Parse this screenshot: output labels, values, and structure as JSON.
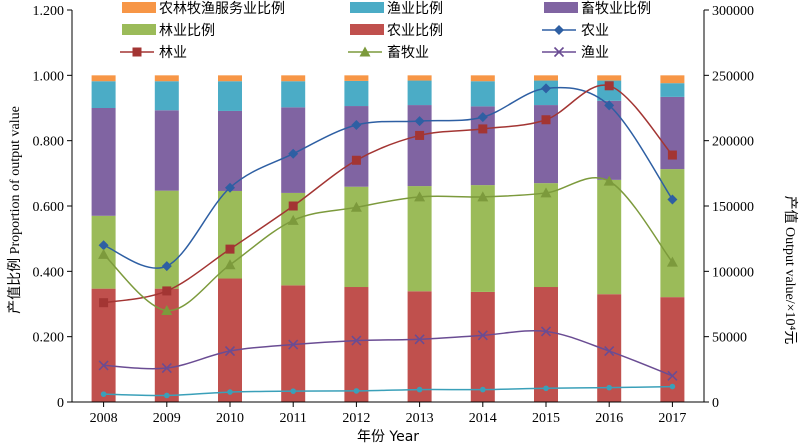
{
  "chart_data": {
    "type": "bar",
    "categories": [
      "2008",
      "2009",
      "2010",
      "2011",
      "2012",
      "2013",
      "2014",
      "2015",
      "2016",
      "2017"
    ],
    "xlabel": "年份 Year",
    "ylabel_left": "产值比例 Proportion of output value",
    "ylabel_right": "产值 Output value/×10⁴元",
    "ylim_left": [
      0,
      1.2
    ],
    "yticks_left": [
      "0",
      "0.200",
      "0.400",
      "0.600",
      "0.800",
      "1.000",
      "1.200"
    ],
    "ylim_right": [
      0,
      300000
    ],
    "yticks_right": [
      "0",
      "50000",
      "100000",
      "150000",
      "200000",
      "250000",
      "300000"
    ],
    "stacked_bars": [
      {
        "name": "农业比例",
        "color": "#c0504d",
        "values": [
          0.347,
          0.347,
          0.378,
          0.357,
          0.352,
          0.339,
          0.337,
          0.352,
          0.33,
          0.321
        ]
      },
      {
        "name": "林业比例",
        "color": "#9bbb59",
        "values": [
          0.223,
          0.3,
          0.268,
          0.283,
          0.307,
          0.322,
          0.327,
          0.318,
          0.35,
          0.392
        ]
      },
      {
        "name": "畜牧业比例",
        "color": "#8064a2",
        "values": [
          0.33,
          0.246,
          0.245,
          0.262,
          0.247,
          0.248,
          0.241,
          0.239,
          0.242,
          0.221
        ]
      },
      {
        "name": "渔业比例",
        "color": "#4bacc6",
        "values": [
          0.082,
          0.089,
          0.091,
          0.08,
          0.077,
          0.075,
          0.077,
          0.075,
          0.062,
          0.042
        ]
      },
      {
        "name": "农林牧渔服务业比例",
        "color": "#f79646",
        "values": [
          0.018,
          0.018,
          0.018,
          0.018,
          0.017,
          0.016,
          0.018,
          0.016,
          0.016,
          0.024
        ]
      }
    ],
    "line_series": [
      {
        "name": "农业",
        "color": "#2e5fa3",
        "marker": "diamond",
        "values": [
          120000,
          104000,
          164000,
          190000,
          212000,
          215000,
          218000,
          240000,
          227000,
          155000
        ]
      },
      {
        "name": "林业",
        "color": "#a33533",
        "marker": "square",
        "values": [
          76000,
          85000,
          117000,
          150000,
          185000,
          204000,
          209000,
          216000,
          242000,
          189000
        ]
      },
      {
        "name": "畜牧业",
        "color": "#7c9a3c",
        "marker": "triangle",
        "values": [
          113000,
          70000,
          105000,
          139000,
          149000,
          157000,
          157000,
          160000,
          169000,
          107000
        ]
      },
      {
        "name": "渔业",
        "color": "#6a4c93",
        "marker": "x",
        "values": [
          28000,
          26000,
          39000,
          44000,
          47000,
          48000,
          51000,
          54000,
          39000,
          20000
        ]
      },
      {
        "name": "",
        "color": "#3aa0b9",
        "marker": "dot",
        "values": [
          6000,
          5000,
          7600,
          8300,
          8500,
          9500,
          9500,
          10500,
          11000,
          11800
        ]
      }
    ],
    "legend_order": [
      "农林牧渔服务业比例",
      "渔业比例",
      "畜牧业比例",
      "林业比例",
      "农业比例",
      "农业",
      "林业",
      "畜牧业",
      "渔业"
    ],
    "legend_placement": "top",
    "grid": false
  }
}
